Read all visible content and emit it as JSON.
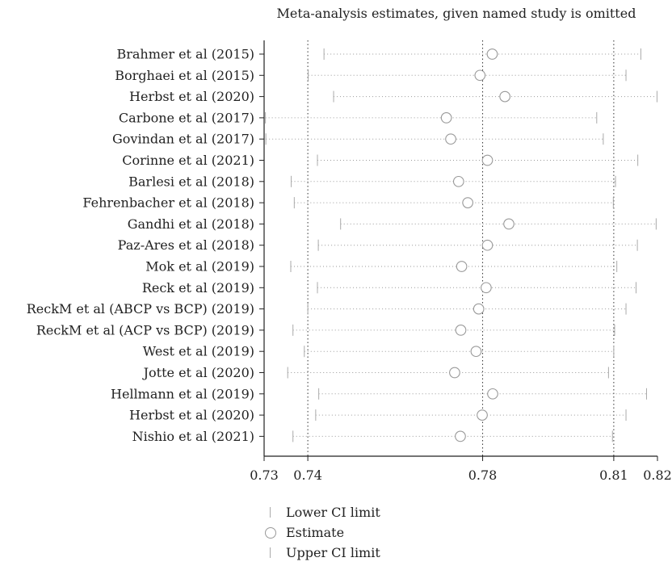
{
  "chart_data": {
    "type": "scatter",
    "title": "Meta-analysis estimates, given named study is omitted",
    "xlim": [
      0.73,
      0.82
    ],
    "xticks": [
      0.73,
      0.74,
      0.78,
      0.81,
      0.82
    ],
    "xtick_labels": [
      "0.73",
      "0.74",
      "0.78",
      "0.81",
      "0.82"
    ],
    "reference_lines": [
      0.74,
      0.78,
      0.81
    ],
    "studies": [
      "Brahmer et al (2015)",
      "Borghaei et al (2015)",
      "Herbst et al (2020)",
      "Carbone et al (2017)",
      "Govindan et al (2017)",
      "Corinne et al (2021)",
      "Barlesi et al (2018)",
      "Fehrenbacher et al (2018)",
      "Gandhi et al (2018)",
      "Paz-Ares et al (2018)",
      "Mok et al (2019)",
      "Reck et al (2019)",
      "ReckM et al (ABCP vs BCP) (2019)",
      "ReckM et al (ACP vs BCP) (2019)",
      "West et al (2019)",
      "Jotte et al (2020)",
      "Hellmann et al (2019)",
      "Herbst et al (2020)",
      "Nishio et al (2021)"
    ],
    "series": [
      {
        "name": "Lower CI limit",
        "values": [
          0.7437,
          0.7401,
          0.7459,
          0.7303,
          0.7304,
          0.7422,
          0.7362,
          0.7369,
          0.7475,
          0.7424,
          0.7361,
          0.7422,
          0.74,
          0.7366,
          0.7392,
          0.7354,
          0.7425,
          0.7418,
          0.7366
        ]
      },
      {
        "name": "Estimate",
        "values": [
          0.7822,
          0.7794,
          0.7851,
          0.7717,
          0.7727,
          0.7811,
          0.7745,
          0.7766,
          0.786,
          0.7811,
          0.7752,
          0.7808,
          0.7791,
          0.775,
          0.7785,
          0.7736,
          0.7823,
          0.7799,
          0.7749
        ]
      },
      {
        "name": "Upper CI limit",
        "values": [
          0.8162,
          0.8128,
          0.8199,
          0.8061,
          0.8076,
          0.8155,
          0.8104,
          0.8099,
          0.8197,
          0.8154,
          0.8107,
          0.8151,
          0.8128,
          0.8102,
          0.81,
          0.8088,
          0.8175,
          0.8128,
          0.8097
        ]
      }
    ],
    "legend_position": "bottom"
  },
  "legend": {
    "lower": "Lower CI limit",
    "estimate": "Estimate",
    "upper": "Upper CI limit"
  }
}
